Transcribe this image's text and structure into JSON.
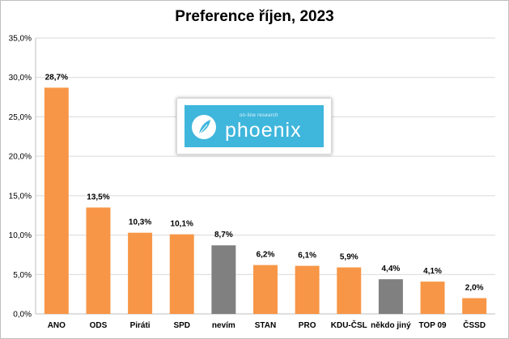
{
  "chart_data": {
    "type": "bar",
    "title": "Preference říjen, 2023",
    "categories": [
      "ANO",
      "ODS",
      "Piráti",
      "SPD",
      "nevím",
      "STAN",
      "PRO",
      "KDU-ČSL",
      "někdo jiný",
      "TOP 09",
      "ČSSD"
    ],
    "values": [
      28.7,
      13.5,
      10.3,
      10.1,
      8.7,
      6.2,
      6.1,
      5.9,
      4.4,
      4.1,
      2.0
    ],
    "data_labels": [
      "28,7%",
      "13,5%",
      "10,3%",
      "10,1%",
      "8,7%",
      "6,2%",
      "6,1%",
      "5,9%",
      "4,4%",
      "4,1%",
      "2,0%"
    ],
    "bar_colors": [
      "#f79646",
      "#f79646",
      "#f79646",
      "#f79646",
      "#808080",
      "#f79646",
      "#f79646",
      "#f79646",
      "#808080",
      "#f79646",
      "#f79646"
    ],
    "y_ticks": [
      0,
      5,
      10,
      15,
      20,
      25,
      30,
      35
    ],
    "y_tick_labels": [
      "0,0%",
      "5,0%",
      "10,0%",
      "15,0%",
      "20,0%",
      "25,0%",
      "30,0%",
      "35,0%"
    ],
    "ylim": [
      0,
      35
    ],
    "xlabel": "",
    "ylabel": "",
    "grid": true,
    "legend": "none"
  },
  "logo": {
    "tagline": "on-line research",
    "wordmark": "phoenix",
    "mark": "®",
    "icon": "feather-icon",
    "background_color": "#3fb6dc"
  }
}
